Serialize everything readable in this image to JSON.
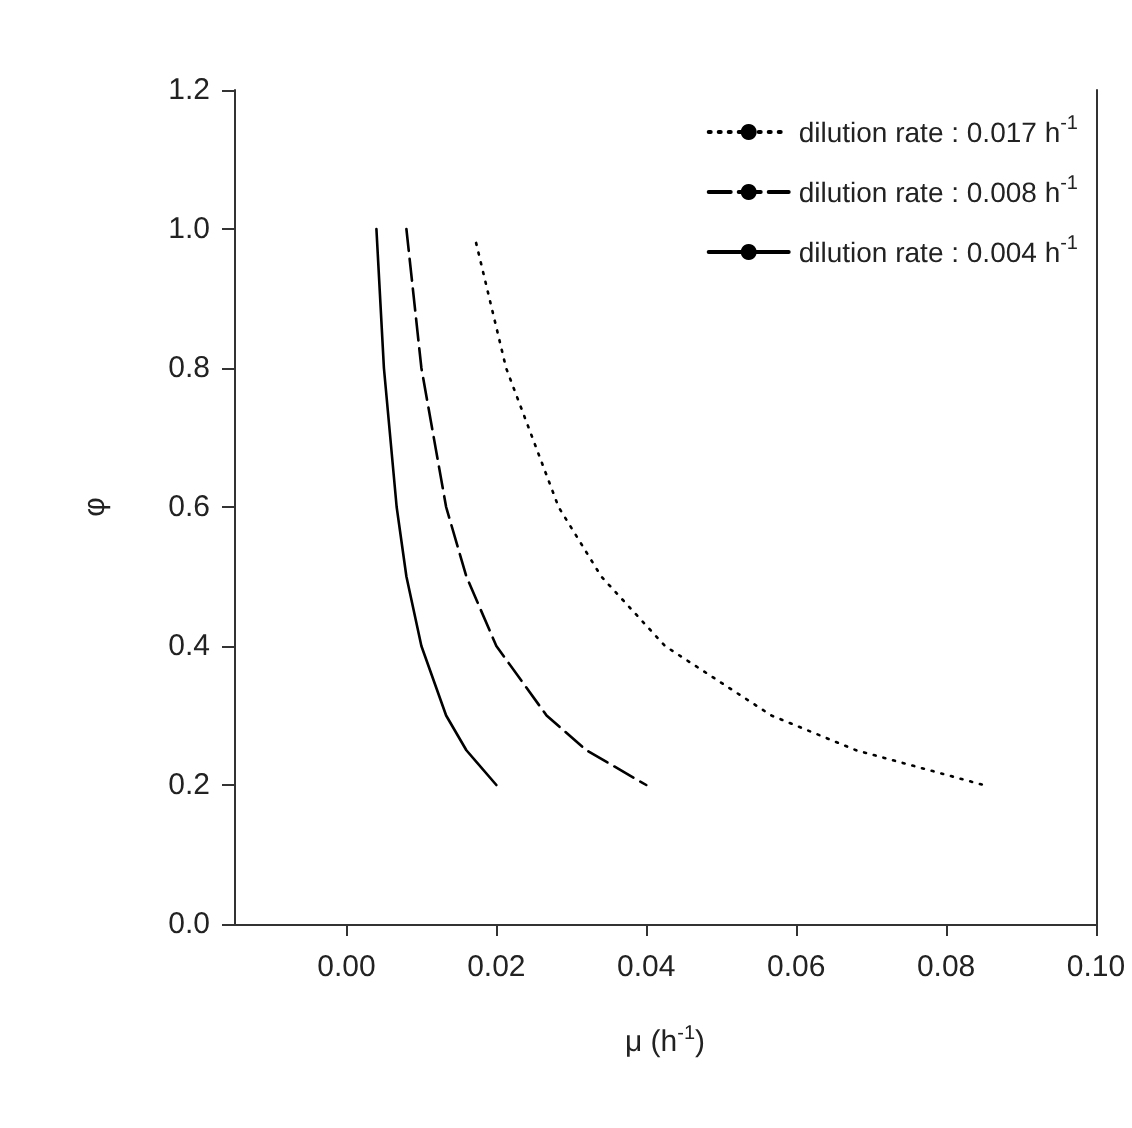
{
  "chart_data": {
    "type": "line",
    "xlabel": "μ (h$^{-1}$)",
    "ylabel": "φ",
    "xlim": [
      -0.015,
      0.1
    ],
    "xticks": [
      {
        "value": 0,
        "label": "0.00"
      },
      {
        "value": 0.02,
        "label": "0.02"
      },
      {
        "value": 0.04,
        "label": "0.04"
      },
      {
        "value": 0.06,
        "label": "0.06"
      },
      {
        "value": 0.08,
        "label": "0.08"
      },
      {
        "value": 0.1,
        "label": "0.10"
      }
    ],
    "ylim": [
      0,
      1.2
    ],
    "yticks": [
      {
        "value": 0,
        "label": "0.0"
      },
      {
        "value": 0.2,
        "label": "0.2"
      },
      {
        "value": 0.4,
        "label": "0.4"
      },
      {
        "value": 0.6,
        "label": "0.6"
      },
      {
        "value": 0.8,
        "label": "0.8"
      },
      {
        "value": 1,
        "label": "1.0"
      },
      {
        "value": 1.2,
        "label": "1.2"
      }
    ],
    "grid": false,
    "legend": "top right",
    "marker": "none",
    "series": [
      {
        "name": "dilution rate : 0.017 h$^{-1}$",
        "color": "#000000",
        "line_style": "dotted",
        "x": [
          0.0173,
          0.0213,
          0.0283,
          0.034,
          0.0425,
          0.0567,
          0.068,
          0.085
        ],
        "values": [
          0.98,
          0.8,
          0.6,
          0.5,
          0.4,
          0.3,
          0.25,
          0.2
        ]
      },
      {
        "name": "dilution rate : 0.008 h$^{-1}$",
        "color": "#000000",
        "line_style": "dashed",
        "x": [
          0.008,
          0.01,
          0.0133,
          0.016,
          0.02,
          0.0267,
          0.032,
          0.04
        ],
        "values": [
          1.0,
          0.8,
          0.6,
          0.5,
          0.4,
          0.3,
          0.25,
          0.2
        ]
      },
      {
        "name": "dilution rate : 0.004 h$^{-1}$",
        "color": "#000000",
        "line_style": "solid",
        "x": [
          0.004,
          0.005,
          0.0067,
          0.008,
          0.01,
          0.0133,
          0.016,
          0.02
        ],
        "values": [
          1.0,
          0.8,
          0.6,
          0.5,
          0.4,
          0.3,
          0.25,
          0.2
        ]
      }
    ]
  }
}
